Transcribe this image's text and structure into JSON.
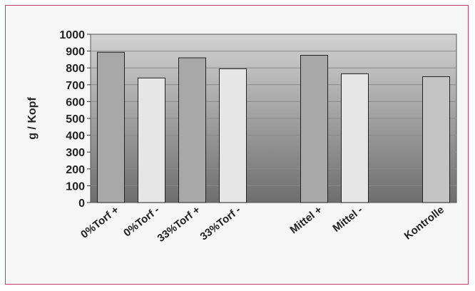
{
  "chart_data": {
    "type": "bar",
    "title": "",
    "xlabel": "",
    "ylabel": "g / Kopf",
    "ylim": [
      0,
      1000
    ],
    "yticks": [
      0,
      100,
      200,
      300,
      400,
      500,
      600,
      700,
      800,
      900,
      1000
    ],
    "grid": true,
    "legend": "none",
    "categories": [
      "0%Torf +",
      "0%Torf -",
      "33%Torf +",
      "33%Torf -",
      "",
      "Mittel +",
      "Mittel -",
      "",
      "Kontrolle"
    ],
    "values": [
      893,
      740,
      860,
      795,
      null,
      875,
      765,
      null,
      748
    ],
    "colors": {
      "bar_plus": "#a8a8a8",
      "bar_minus": "#e6e6e6",
      "bar_control": "#c4c4c4",
      "plot_top": "#d2d2d2",
      "plot_bottom": "#6e6e6e"
    }
  }
}
